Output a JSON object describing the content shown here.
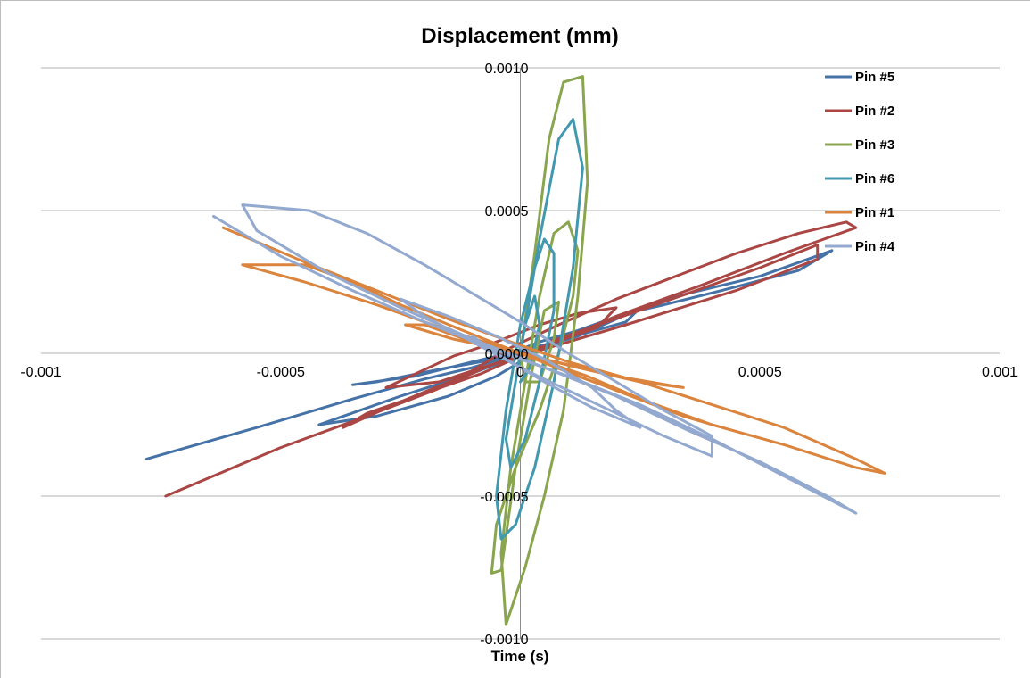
{
  "chart_data": {
    "type": "scatter",
    "title": "Displacement (mm)",
    "xlabel": "Time (s)",
    "ylabel": "",
    "xlim": [
      -0.001,
      0.001
    ],
    "ylim": [
      -0.001,
      0.001
    ],
    "x_ticks": [
      -0.001,
      -0.0005,
      0,
      0.0005,
      0.001
    ],
    "x_tick_labels": [
      "-0.001",
      "-0.0005",
      "0",
      "0.0005",
      "0.001"
    ],
    "y_ticks": [
      0.001,
      0.0005,
      0,
      -0.0005,
      -0.001
    ],
    "y_tick_labels": [
      "0.0010",
      "0.0005",
      "0.0000",
      "-0.0005",
      "-0.0010"
    ],
    "grid": "horizontal",
    "legend_position": "top-right",
    "series": [
      {
        "name": "Pin #5",
        "color": "#4572A7",
        "points": [
          [
            -0.00078,
            -0.00037
          ],
          [
            -0.00055,
            -0.00026
          ],
          [
            -0.00035,
            -0.00016
          ],
          [
            -0.0002,
            -9e-05
          ],
          [
            -0.0001,
            -5e-05
          ],
          [
            -2e-05,
            -1e-05
          ],
          [
            8e-05,
            4e-05
          ],
          [
            0.0002,
            0.00013
          ],
          [
            0.00035,
            0.00021
          ],
          [
            0.0005,
            0.00027
          ],
          [
            0.00065,
            0.00036
          ],
          [
            0.00058,
            0.00029
          ],
          [
            0.00042,
            0.00022
          ],
          [
            0.0003,
            0.00017
          ],
          [
            0.00022,
            0.00014
          ],
          [
            0.00012,
            8e-05
          ],
          [
            4e-05,
            4e-05
          ],
          [
            -5e-05,
            -2e-05
          ],
          [
            -0.00015,
            -5e-05
          ],
          [
            -0.0003,
            -0.0001
          ],
          [
            -0.00035,
            -0.00011
          ],
          [
            -0.00022,
            -8e-05
          ],
          [
            -0.0001,
            -3e-05
          ],
          [
            5e-05,
            3e-05
          ],
          [
            0.00022,
            0.00011
          ],
          [
            0.00025,
            0.00016
          ],
          [
            0.0002,
            0.00012
          ],
          [
            0.00012,
            6e-05
          ],
          [
            4e-05,
            2e-05
          ],
          [
            -0.0001,
            -7e-05
          ],
          [
            -0.00025,
            -0.00015
          ],
          [
            -0.00042,
            -0.00025
          ],
          [
            -0.0003,
            -0.00022
          ],
          [
            -0.00015,
            -0.00015
          ],
          [
            -5e-05,
            -8e-05
          ],
          [
            2e-05,
            -1e-05
          ],
          [
            6e-05,
            3e-05
          ]
        ]
      },
      {
        "name": "Pin #2",
        "color": "#AA4643",
        "points": [
          [
            -0.00074,
            -0.0005
          ],
          [
            -0.0005,
            -0.00033
          ],
          [
            -0.00032,
            -0.00022
          ],
          [
            -0.00018,
            -0.00013
          ],
          [
            -6e-05,
            -4e-05
          ],
          [
            6e-05,
            3e-05
          ],
          [
            0.0002,
            0.00013
          ],
          [
            0.00038,
            0.00024
          ],
          [
            0.00055,
            0.00035
          ],
          [
            0.0007,
            0.00044
          ],
          [
            0.00068,
            0.00046
          ],
          [
            0.00058,
            0.00042
          ],
          [
            0.00045,
            0.00035
          ],
          [
            0.00034,
            0.00028
          ],
          [
            0.0002,
            0.00019
          ],
          [
            8e-05,
            0.0001
          ],
          [
            -2e-05,
            2e-05
          ],
          [
            -0.00012,
            -8e-05
          ],
          [
            -0.00025,
            -0.00017
          ],
          [
            -0.00037,
            -0.00026
          ],
          [
            -0.00032,
            -0.00021
          ],
          [
            -0.0002,
            -0.00014
          ],
          [
            -8e-05,
            -7e-05
          ],
          [
            4e-05,
            2e-05
          ],
          [
            0.00016,
            9e-05
          ],
          [
            0.0002,
            0.00016
          ],
          [
            0.00012,
            0.00014
          ],
          [
            4e-05,
            0.0001
          ],
          [
            -5e-05,
            4e-05
          ],
          [
            -0.00014,
            -1e-05
          ],
          [
            -0.00028,
            -0.00012
          ],
          [
            -0.00017,
            -0.0001
          ],
          [
            -8e-05,
            -5e-05
          ],
          [
            2e-05,
            0
          ],
          [
            0.0001,
            4e-05
          ],
          [
            0.00022,
            0.0001
          ],
          [
            0.00045,
            0.00022
          ],
          [
            0.00062,
            0.00033
          ],
          [
            0.00062,
            0.00038
          ],
          [
            0.0005,
            0.0003
          ],
          [
            0.00035,
            0.00021
          ],
          [
            0.00018,
            0.00011
          ],
          [
            6e-05,
            4e-05
          ]
        ]
      },
      {
        "name": "Pin #3",
        "color": "#89A54E",
        "points": [
          [
            0.0,
            0.0
          ],
          [
            3e-05,
            0.00035
          ],
          [
            6e-05,
            0.00075
          ],
          [
            9e-05,
            0.00095
          ],
          [
            0.00013,
            0.00097
          ],
          [
            0.00014,
            0.0006
          ],
          [
            0.00012,
            0.0002
          ],
          [
            9e-05,
            -0.0002
          ],
          [
            5e-05,
            -0.0005
          ],
          [
            1e-05,
            -0.00075
          ],
          [
            -3e-05,
            -0.00095
          ],
          [
            -4e-05,
            -0.0007
          ],
          [
            -2e-05,
            -0.0004
          ],
          [
            1e-05,
            -0.0001
          ],
          [
            4e-05,
            0.0002
          ],
          [
            7e-05,
            0.00042
          ],
          [
            0.0001,
            0.00046
          ],
          [
            0.00012,
            0.00036
          ],
          [
            0.00011,
            0.0002
          ],
          [
            8e-05,
            0.0
          ],
          [
            4e-05,
            -0.0002
          ],
          [
            -1e-05,
            -0.0004
          ],
          [
            -5e-05,
            -0.0006
          ],
          [
            -6e-05,
            -0.00077
          ],
          [
            -4e-05,
            -0.00076
          ],
          [
            -1e-05,
            -0.0004
          ],
          [
            2e-05,
            -0.0001
          ],
          [
            5e-05,
            0.00015
          ],
          [
            8e-05,
            0.00018
          ],
          [
            7e-05,
            5e-05
          ],
          [
            4e-05,
            -0.0001
          ],
          [
            1e-05,
            -0.0001
          ],
          [
            0.0,
            0.0
          ]
        ]
      },
      {
        "name": "Pin #6",
        "color": "#4198AF",
        "points": [
          [
            0.0,
            0.0
          ],
          [
            4e-05,
            0.0004
          ],
          [
            8e-05,
            0.00075
          ],
          [
            0.00011,
            0.00082
          ],
          [
            0.00013,
            0.00065
          ],
          [
            0.00011,
            0.0003
          ],
          [
            7e-05,
            -0.0001
          ],
          [
            3e-05,
            -0.0004
          ],
          [
            -1e-05,
            -0.0006
          ],
          [
            -4e-05,
            -0.00065
          ],
          [
            -5e-05,
            -0.0005
          ],
          [
            -3e-05,
            -0.0002
          ],
          [
            0.0,
            0.0001
          ],
          [
            3e-05,
            0.0003
          ],
          [
            5e-05,
            0.0004
          ],
          [
            7e-05,
            0.00035
          ],
          [
            7e-05,
            0.00015
          ],
          [
            4e-05,
            -0.0001
          ],
          [
            1e-05,
            -0.0003
          ],
          [
            -2e-05,
            -0.0004
          ],
          [
            -3e-05,
            -0.0003
          ],
          [
            -1e-05,
            -0.0001
          ],
          [
            1e-05,
            0.0001
          ],
          [
            3e-05,
            0.0002
          ],
          [
            4e-05,
            0.0001
          ],
          [
            2e-05,
            -5e-05
          ],
          [
            0.0,
            -0.0001
          ]
        ]
      },
      {
        "name": "Pin #1",
        "color": "#DB843D",
        "points": [
          [
            -0.00062,
            0.00044
          ],
          [
            -0.00045,
            0.00032
          ],
          [
            -0.0003,
            0.00022
          ],
          [
            -0.00015,
            0.00012
          ],
          [
            -2e-05,
            4e-05
          ],
          [
            0.0001,
            -3e-05
          ],
          [
            0.00025,
            -0.0001
          ],
          [
            0.0004,
            -0.00018
          ],
          [
            0.00055,
            -0.00026
          ],
          [
            0.0007,
            -0.00037
          ],
          [
            0.00076,
            -0.00042
          ],
          [
            0.0007,
            -0.0004
          ],
          [
            0.00055,
            -0.00032
          ],
          [
            0.0004,
            -0.00025
          ],
          [
            0.00025,
            -0.00016
          ],
          [
            0.00012,
            -8e-05
          ],
          [
            0.0,
            0.0
          ],
          [
            -0.00012,
            8e-05
          ],
          [
            -0.00025,
            0.00017
          ],
          [
            -0.00035,
            0.00025
          ],
          [
            -0.00045,
            0.00031
          ],
          [
            -0.00058,
            0.00031
          ],
          [
            -0.00045,
            0.00025
          ],
          [
            -0.0003,
            0.00017
          ],
          [
            -0.00015,
            8e-05
          ],
          [
            0.0,
            0.0
          ],
          [
            0.00012,
            -5e-05
          ],
          [
            0.00025,
            -0.0001
          ],
          [
            0.00034,
            -0.00012
          ],
          [
            0.0002,
            -8e-05
          ],
          [
            5e-05,
            -2e-05
          ],
          [
            -0.0001,
            4e-05
          ],
          [
            -0.0002,
            0.0001
          ],
          [
            -0.00024,
            0.0001
          ],
          [
            -0.00014,
            5e-05
          ],
          [
            0.0,
            0.0
          ],
          [
            0.00014,
            -8e-05
          ],
          [
            0.00028,
            -0.00018
          ],
          [
            0.0004,
            -0.00025
          ],
          [
            0.00034,
            -0.00022
          ],
          [
            0.0002,
            -0.00013
          ],
          [
            6e-05,
            -4e-05
          ]
        ]
      },
      {
        "name": "Pin #4",
        "color": "#93A9CF",
        "points": [
          [
            -0.00064,
            0.00048
          ],
          [
            -0.0005,
            0.00034
          ],
          [
            -0.00035,
            0.00022
          ],
          [
            -0.0002,
            0.00011
          ],
          [
            -5e-05,
            1e-05
          ],
          [
            0.0001,
            -8e-05
          ],
          [
            0.00025,
            -0.00018
          ],
          [
            0.0004,
            -0.0003
          ],
          [
            0.00055,
            -0.00043
          ],
          [
            0.0007,
            -0.00056
          ],
          [
            0.00064,
            -0.0005
          ],
          [
            0.0005,
            -0.00038
          ],
          [
            0.00035,
            -0.00027
          ],
          [
            0.0002,
            -0.00015
          ],
          [
            5e-05,
            -5e-05
          ],
          [
            -0.0001,
            5e-05
          ],
          [
            -0.00025,
            0.00016
          ],
          [
            -0.0004,
            0.00028
          ],
          [
            -0.00055,
            0.00043
          ],
          [
            -0.00058,
            0.00052
          ],
          [
            -0.00044,
            0.0005
          ],
          [
            -0.00032,
            0.00042
          ],
          [
            -0.0002,
            0.00031
          ],
          [
            -0.0001,
            0.00021
          ],
          [
            0.0,
            0.00011
          ],
          [
            0.0001,
            0.0
          ],
          [
            0.0002,
            -0.0001
          ],
          [
            0.0003,
            -0.0002
          ],
          [
            0.0004,
            -0.00029
          ],
          [
            0.0004,
            -0.00036
          ],
          [
            0.0003,
            -0.00029
          ],
          [
            0.0002,
            -0.00021
          ],
          [
            0.0001,
            -0.00013
          ],
          [
            0.0,
            -5e-05
          ],
          [
            -0.0001,
            4e-05
          ],
          [
            -0.0002,
            0.00013
          ],
          [
            -0.00025,
            0.00019
          ],
          [
            -0.00015,
            0.00013
          ],
          [
            -5e-05,
            6e-05
          ],
          [
            5e-05,
            -2e-05
          ],
          [
            0.00015,
            -0.00012
          ],
          [
            0.0002,
            -0.0002
          ],
          [
            0.00025,
            -0.00026
          ],
          [
            0.00015,
            -0.00019
          ],
          [
            5e-05,
            -0.0001
          ],
          [
            -5e-05,
            0.0
          ],
          [
            -0.0001,
            6e-05
          ]
        ]
      }
    ]
  }
}
